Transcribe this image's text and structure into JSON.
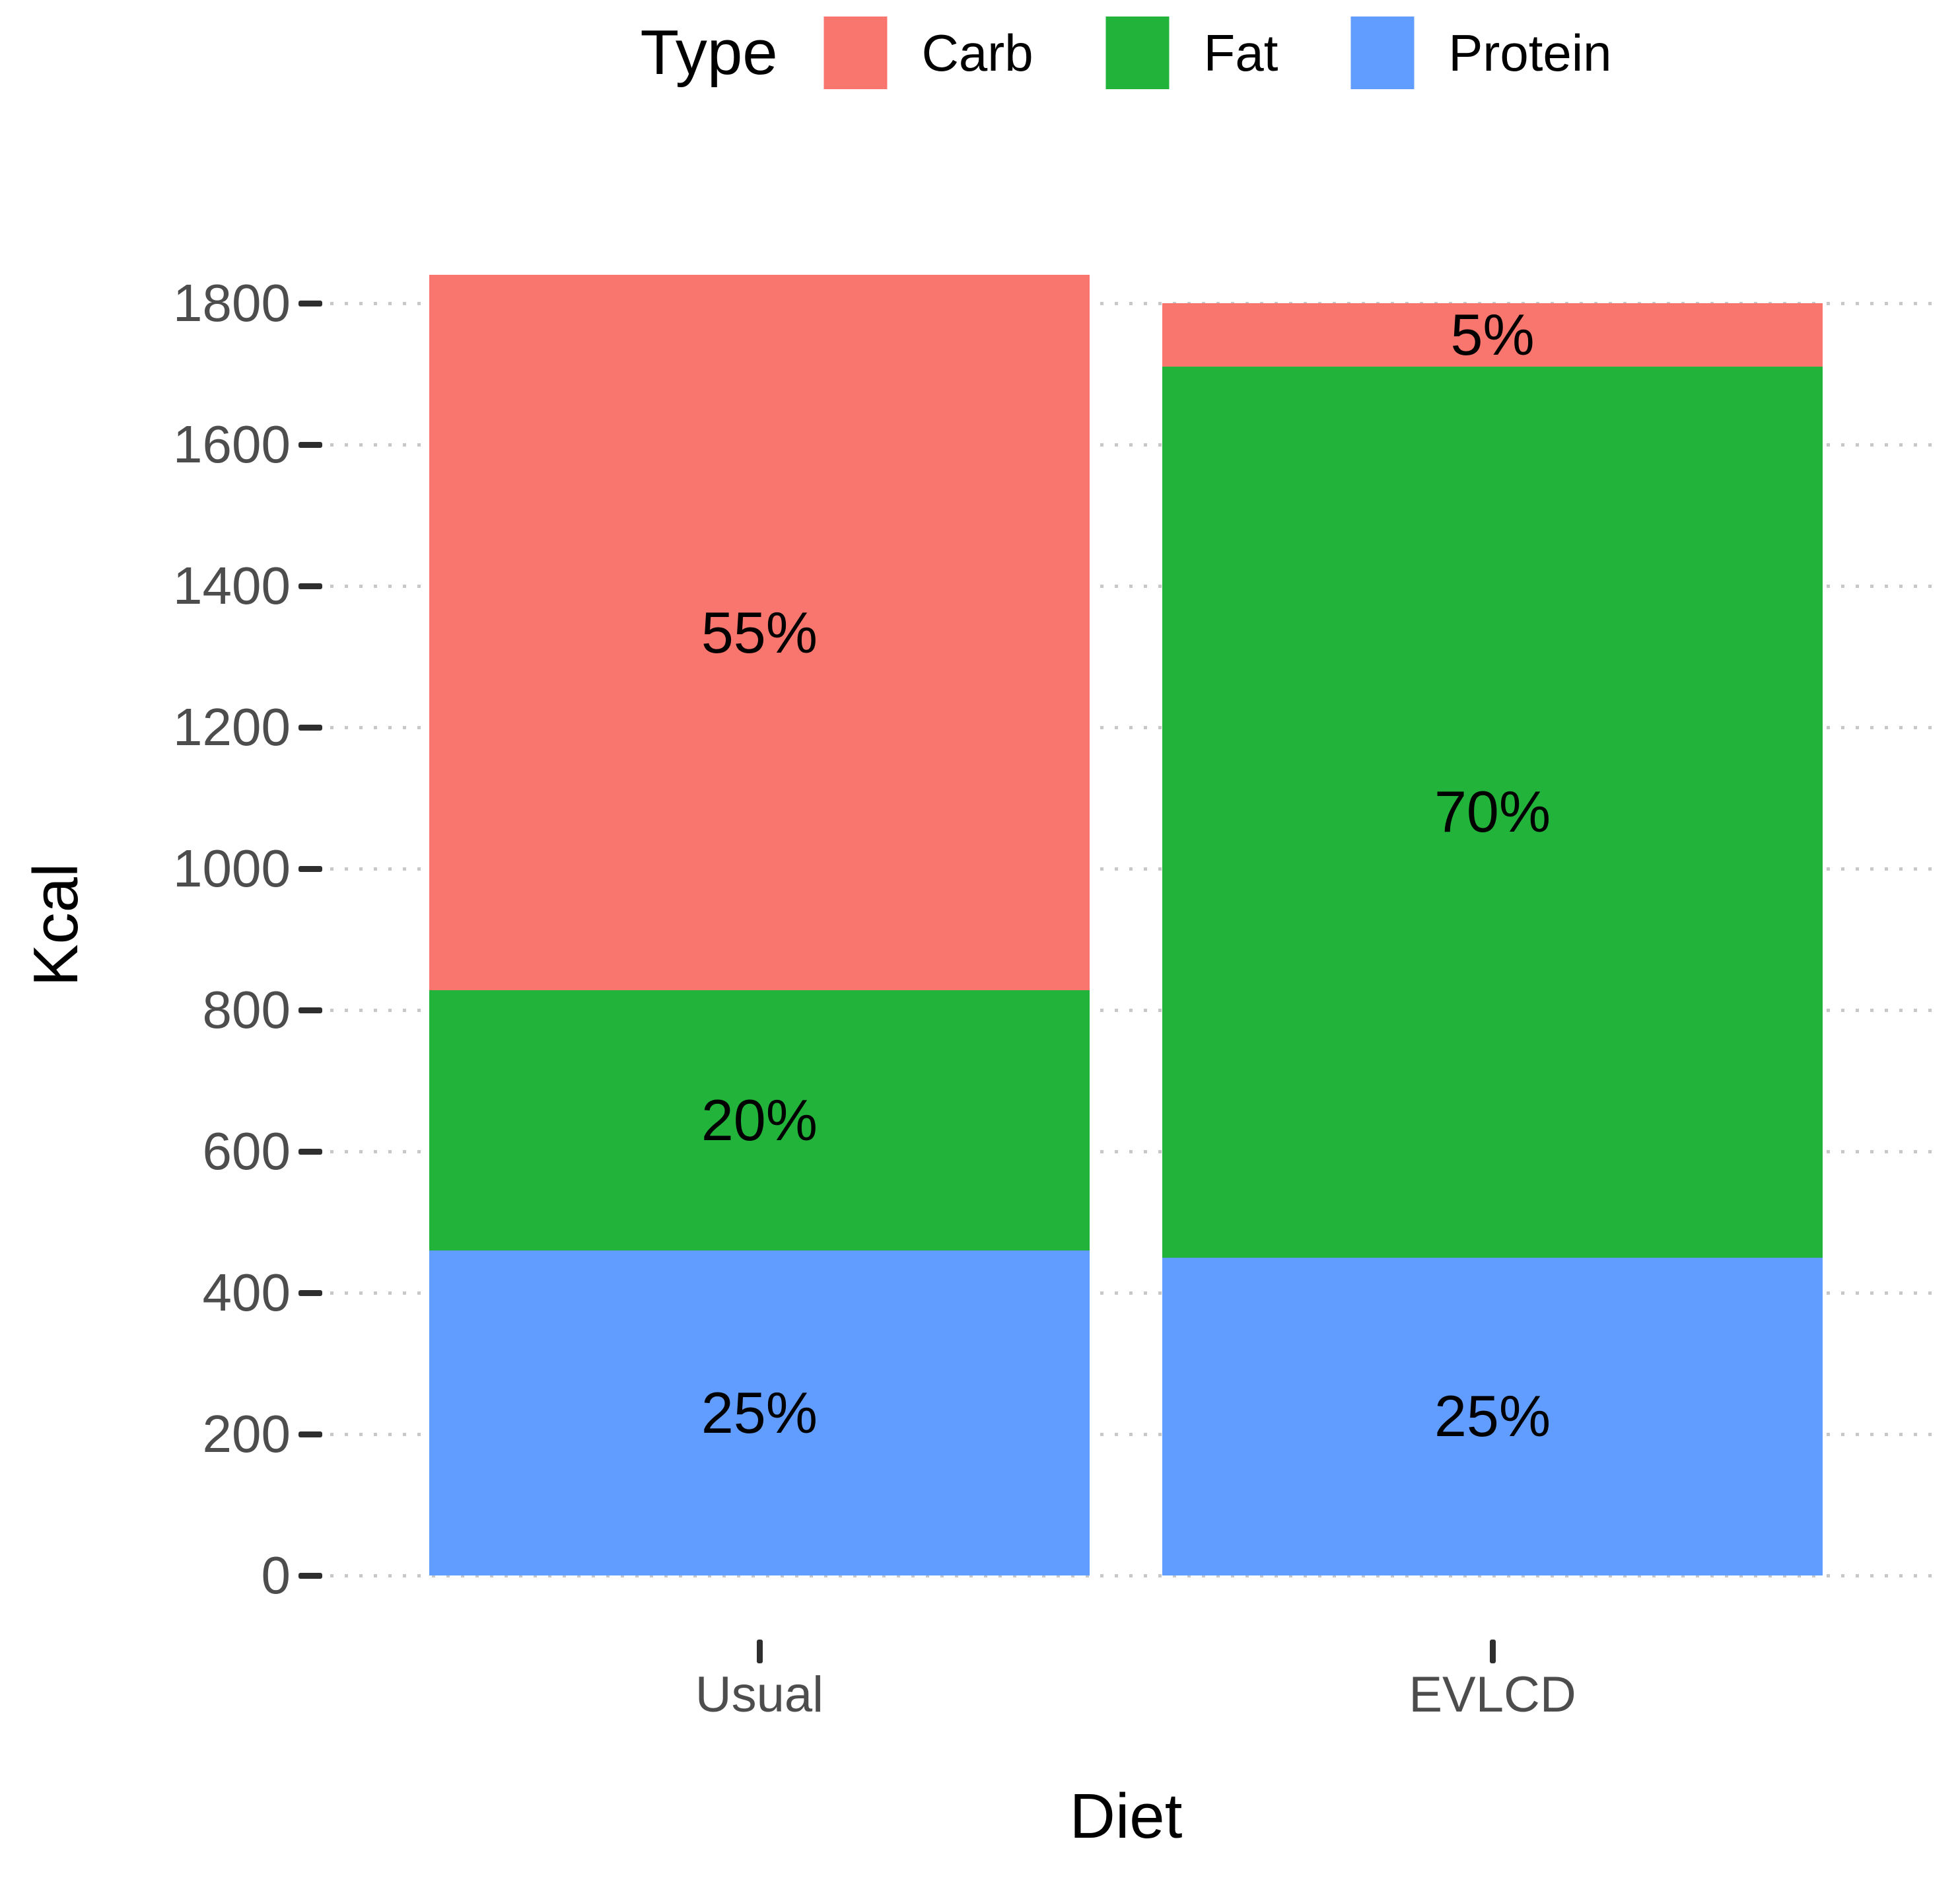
{
  "chart_data": {
    "type": "bar",
    "stacked": true,
    "title": "",
    "xlabel": "Diet",
    "ylabel": "Kcal",
    "categories": [
      "Usual",
      "EVLCD"
    ],
    "series": [
      {
        "name": "Carb",
        "color": "#F8766D",
        "values": [
          1012,
          90
        ],
        "percent_labels": [
          "55%",
          "5%"
        ]
      },
      {
        "name": "Fat",
        "color": "#22B43A",
        "values": [
          368,
          1260
        ],
        "percent_labels": [
          "20%",
          "70%"
        ]
      },
      {
        "name": "Protein",
        "color": "#619CFF",
        "values": [
          460,
          450
        ],
        "percent_labels": [
          "25%",
          "25%"
        ]
      }
    ],
    "stack_bottom_to_top": [
      "Protein",
      "Fat",
      "Carb"
    ],
    "totals": [
      1840,
      1800
    ],
    "ylim": [
      0,
      1840
    ],
    "yticks": [
      0,
      200,
      400,
      600,
      800,
      1000,
      1200,
      1400,
      1600,
      1800
    ],
    "grid": "horizontal-dotted",
    "legend": {
      "title": "Type",
      "position": "top"
    },
    "colors": {
      "grid": "#C8C8C8",
      "tick_mark": "#2E2E2E",
      "tick_label": "#4D4D4D",
      "axis_title": "#000000",
      "segment_label": "#000000",
      "background": "#FFFFFF"
    }
  }
}
